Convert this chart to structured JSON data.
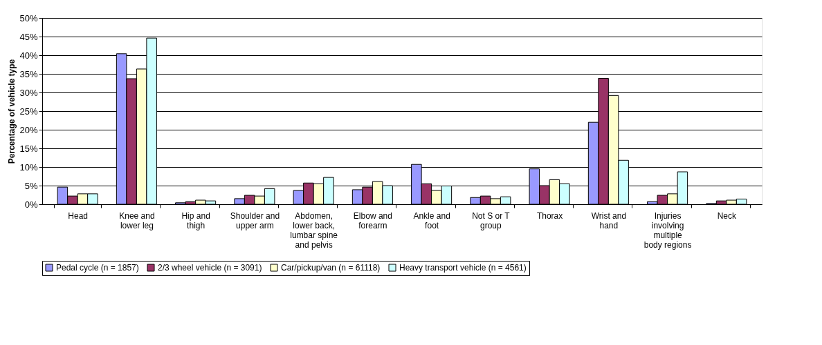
{
  "chart_data": {
    "type": "bar",
    "ylabel": "Percentage of vehicle type",
    "categories": [
      "Head",
      "Knee and lower leg",
      "Hip and thigh",
      "Shoulder and upper arm",
      "Abdomen, lower back, lumbar spine and pelvis",
      "Elbow and forearm",
      "Ankle and foot",
      "Not S or T group",
      "Thorax",
      "Wrist and hand",
      "Injuries involving multiple body regions",
      "Neck"
    ],
    "series": [
      {
        "name": "Pedal cycle (n = 1857)",
        "color": "#9999ff",
        "values": [
          4.6,
          40.4,
          0.4,
          1.5,
          3.7,
          3.9,
          10.7,
          1.8,
          9.5,
          22.0,
          0.7,
          0.2
        ]
      },
      {
        "name": "2/3 wheel vehicle (n = 3091)",
        "color": "#993366",
        "values": [
          2.2,
          33.7,
          0.7,
          2.4,
          5.7,
          4.6,
          5.5,
          2.2,
          5.0,
          33.8,
          2.4,
          0.9
        ]
      },
      {
        "name": "Car/pickup/van (n = 61118)",
        "color": "#ffffcc",
        "values": [
          2.8,
          36.3,
          1.1,
          2.2,
          5.5,
          6.1,
          3.7,
          1.5,
          6.6,
          29.2,
          2.8,
          1.1
        ]
      },
      {
        "name": "Heavy transport vehicle (n = 4561)",
        "color": "#ccffff",
        "values": [
          2.8,
          44.6,
          0.9,
          4.2,
          7.2,
          5.0,
          4.9,
          2.0,
          5.5,
          11.8,
          8.7,
          1.4
        ]
      }
    ],
    "ylim": [
      0,
      50
    ],
    "yticks": [
      {
        "value": 0,
        "label": "0%"
      },
      {
        "value": 5,
        "label": "5%"
      },
      {
        "value": 10,
        "label": "10%"
      },
      {
        "value": 15,
        "label": "15%"
      },
      {
        "value": 20,
        "label": "20%"
      },
      {
        "value": 25,
        "label": "25%"
      },
      {
        "value": 30,
        "label": "30%"
      },
      {
        "value": 35,
        "label": "35%"
      },
      {
        "value": 40,
        "label": "40%"
      },
      {
        "value": 45,
        "label": "45%"
      },
      {
        "value": 50,
        "label": "50%"
      }
    ],
    "grid": "y",
    "legend": "bottom"
  }
}
